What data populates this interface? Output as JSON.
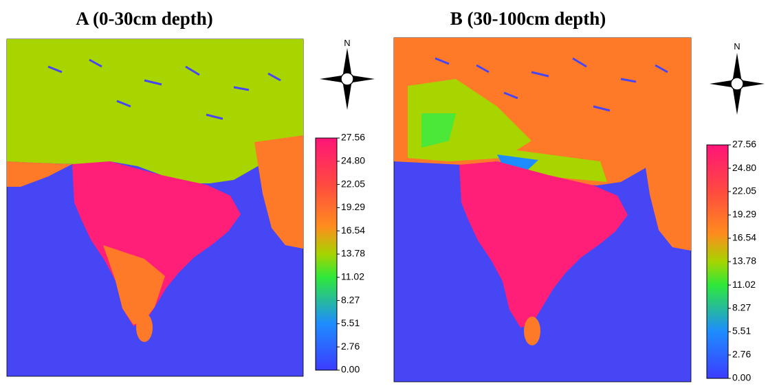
{
  "panels": [
    {
      "title": "A (0-30cm depth)",
      "north_label": "N",
      "colorbar": {
        "clim": [
          0,
          27.56
        ],
        "ticks": [
          {
            "value": 0,
            "label": "0.00"
          },
          2.76,
          5.51,
          8.27,
          11.02,
          13.78,
          16.54,
          19.29,
          22.05,
          {
            "value": 24.8,
            "label": "24.80"
          },
          27.56
        ]
      }
    },
    {
      "title": "B (30-100cm depth)",
      "north_label": "N",
      "colorbar": {
        "clim": [
          0,
          27.56
        ],
        "ticks": [
          {
            "value": 0,
            "label": "0.00"
          },
          2.76,
          5.51,
          8.27,
          11.02,
          13.78,
          16.54,
          19.29,
          22.05,
          {
            "value": 24.8,
            "label": "24.80"
          },
          27.56
        ]
      }
    }
  ]
}
